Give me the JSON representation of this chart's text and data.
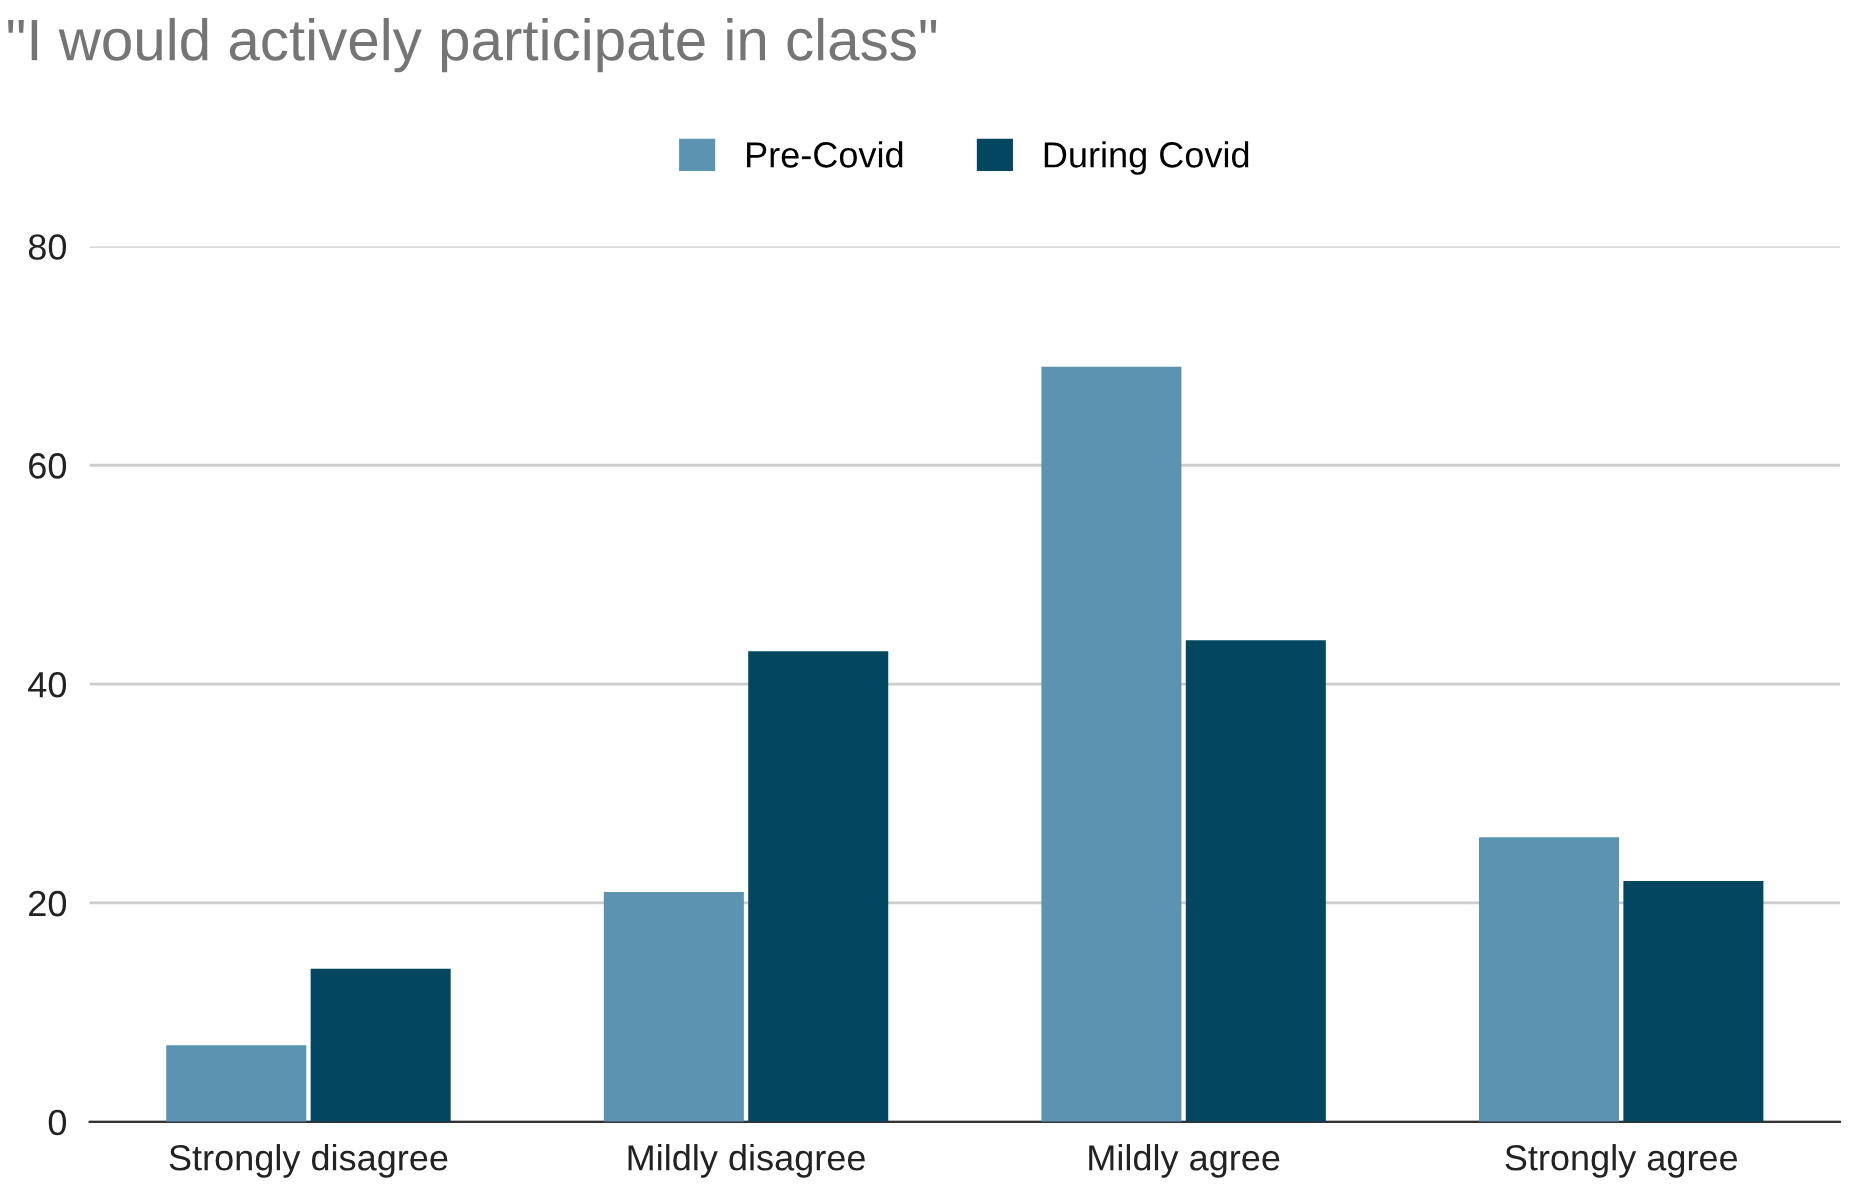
{
  "chart_data": {
    "type": "bar",
    "title": "\"I would actively participate in class\"",
    "categories": [
      "Strongly disagree",
      "Mildly disagree",
      "Mildly agree",
      "Strongly agree"
    ],
    "series": [
      {
        "name": "Pre-Covid",
        "color": "#5b93b1",
        "values": [
          7,
          21,
          69,
          26
        ]
      },
      {
        "name": "During Covid",
        "color": "#02475f",
        "values": [
          14,
          43,
          44,
          22
        ]
      }
    ],
    "ylim": [
      0,
      80
    ],
    "yticks": [
      0,
      20,
      40,
      60,
      80
    ],
    "grid": "y",
    "legend": "top"
  }
}
